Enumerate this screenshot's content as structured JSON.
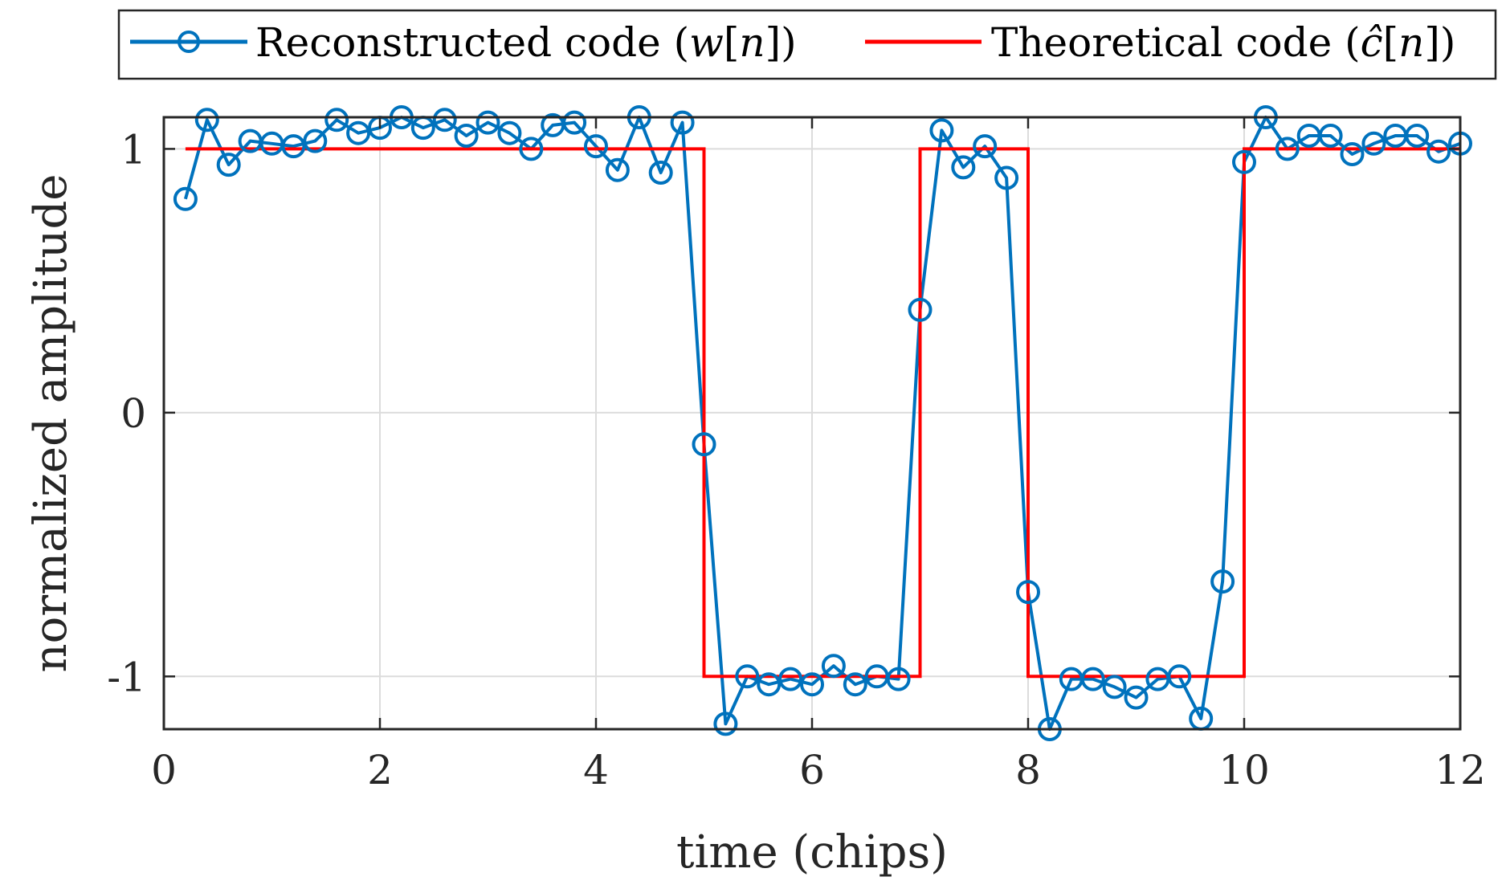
{
  "chart_data": {
    "type": "line",
    "title": "",
    "xlabel": "time (chips)",
    "ylabel": "normalized amplitude",
    "xlim": [
      0,
      12
    ],
    "ylim": [
      -1.2,
      1.12
    ],
    "grid": true,
    "legend_position": "top",
    "x_ticks": [
      0,
      2,
      4,
      6,
      8,
      10,
      12
    ],
    "x_tick_labels": [
      "0",
      "2",
      "4",
      "6",
      "8",
      "10",
      "12"
    ],
    "y_ticks": [
      -1,
      0,
      1
    ],
    "y_tick_labels": [
      "-1",
      "0",
      "1"
    ],
    "series": [
      {
        "name": "Reconstructed code (w[n])",
        "color": "#0072BD",
        "marker": "circle",
        "x": [
          0.2,
          0.4,
          0.6,
          0.8,
          1.0,
          1.2,
          1.4,
          1.6,
          1.8,
          2.0,
          2.2,
          2.4,
          2.6,
          2.8,
          3.0,
          3.2,
          3.4,
          3.6,
          3.8,
          4.0,
          4.2,
          4.4,
          4.6,
          4.8,
          5.0,
          5.2,
          5.4,
          5.6,
          5.8,
          6.0,
          6.2,
          6.4,
          6.6,
          6.8,
          7.0,
          7.2,
          7.4,
          7.6,
          7.8,
          8.0,
          8.2,
          8.4,
          8.6,
          8.8,
          9.0,
          9.2,
          9.4,
          9.6,
          9.8,
          10.0,
          10.2,
          10.4,
          10.6,
          10.8,
          11.0,
          11.2,
          11.4,
          11.6,
          11.8,
          12.0
        ],
        "values": [
          0.81,
          1.11,
          0.94,
          1.03,
          1.02,
          1.01,
          1.03,
          1.11,
          1.06,
          1.08,
          1.12,
          1.08,
          1.11,
          1.05,
          1.1,
          1.06,
          1.0,
          1.09,
          1.1,
          1.01,
          0.92,
          1.12,
          0.91,
          1.1,
          -0.12,
          -1.18,
          -1.0,
          -1.03,
          -1.01,
          -1.03,
          -0.96,
          -1.03,
          -1.0,
          -1.01,
          0.39,
          1.07,
          0.93,
          1.01,
          0.89,
          -0.68,
          -1.2,
          -1.01,
          -1.01,
          -1.04,
          -1.08,
          -1.01,
          -1.0,
          -1.16,
          -0.64,
          0.95,
          1.12,
          1.0,
          1.05,
          1.05,
          0.98,
          1.02,
          1.05,
          1.05,
          0.99,
          1.02
        ]
      },
      {
        "name": "Theoretical code (ĉ[n])",
        "color": "#FF0000",
        "step_x": [
          0.2,
          5,
          5,
          7,
          7,
          8,
          8,
          10,
          10,
          12
        ],
        "step_y": [
          1,
          1,
          -1,
          -1,
          1,
          1,
          -1,
          -1,
          1,
          1
        ]
      }
    ],
    "legend": {
      "entries": [
        {
          "label_plain": "Reconstructed code (",
          "label_math": "w",
          "label_bracket_open": "[",
          "label_index": "n",
          "label_bracket_close": "])"
        },
        {
          "label_plain": "Theoretical code (",
          "label_math": "ĉ",
          "label_bracket_open": "[",
          "label_index": "n",
          "label_bracket_close": "])"
        }
      ]
    }
  }
}
